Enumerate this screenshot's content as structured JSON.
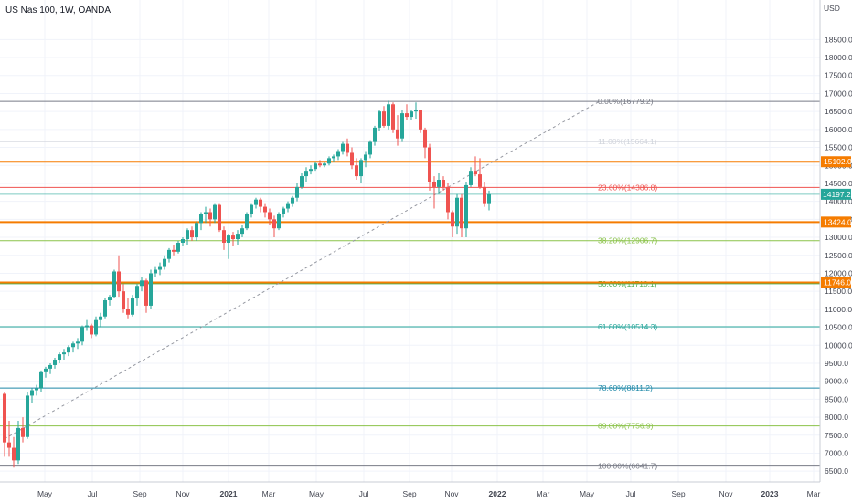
{
  "symbol": {
    "title": "US Nas 100, 1W, OANDA"
  },
  "chart_data": {
    "type": "candlestick",
    "title": "US Nas 100, 1W, OANDA",
    "currency_label": "USD",
    "ylim": [
      6200,
      19600
    ],
    "y_ticks": [
      "6500.0",
      "7000.0",
      "7500.0",
      "8000.0",
      "8500.0",
      "9000.0",
      "9500.0",
      "10000.0",
      "10500.0",
      "11000.0",
      "11500.0",
      "12000.0",
      "12500.0",
      "13000.0",
      "13500.0",
      "14000.0",
      "14500.0",
      "15000.0",
      "15500.0",
      "16000.0",
      "16500.0",
      "17000.0",
      "17500.0",
      "18000.0",
      "18500.0"
    ],
    "x_ticks": [
      "May",
      "Jul",
      "Sep",
      "Nov",
      "2021",
      "Mar",
      "May",
      "Jul",
      "Sep",
      "Nov",
      "2022",
      "Mar",
      "May",
      "Jul",
      "Sep",
      "Nov",
      "2023",
      "Mar"
    ],
    "colors": {
      "up": "#26a69a",
      "down": "#ef5350",
      "orange": "#f57c00",
      "grid": "#f0f3fa",
      "axis": "#c9ccd4",
      "current": "#26a69a",
      "trend": "#9598a1"
    },
    "current_price": {
      "label": "14197.2",
      "value": 14197.2
    },
    "horizontal_levels": [
      {
        "label": "15102.0",
        "value": 15102.0
      },
      {
        "label": "13424.0",
        "value": 13424.0
      },
      {
        "label": "11746.0",
        "value": 11746.0
      }
    ],
    "fib_levels": [
      {
        "label": "0.00%(16779.2)",
        "value": 16779.2,
        "color": "#787b86"
      },
      {
        "label": "11.00%(15664.1)",
        "value": 15664.1,
        "color": "#d1d4dc"
      },
      {
        "label": "23.60%(14386.8)",
        "value": 14386.8,
        "color": "#ef5350"
      },
      {
        "label": "38.20%(12906.7)",
        "value": 12906.7,
        "color": "#8bc34a"
      },
      {
        "label": "50.00%(11710.1)",
        "value": 11710.1,
        "color": "#4caf50"
      },
      {
        "label": "61.80%(10514.3)",
        "value": 10514.3,
        "color": "#26a69a"
      },
      {
        "label": "78.60%(8811.2)",
        "value": 8811.2,
        "color": "#1e88a8"
      },
      {
        "label": "89.00%(7756.9)",
        "value": 7756.9,
        "color": "#8bc34a"
      },
      {
        "label": "100.00%(6641.7)",
        "value": 6641.7,
        "color": "#787b86"
      }
    ],
    "trendline": {
      "from": [
        0,
        7400
      ],
      "to": [
        114,
        16770
      ]
    },
    "candles": [
      [
        8650,
        8700,
        6900,
        7300
      ],
      [
        7300,
        7900,
        6900,
        7150
      ],
      [
        7150,
        7450,
        6600,
        6800
      ],
      [
        6800,
        7900,
        6700,
        7700
      ],
      [
        7700,
        8000,
        7300,
        7450
      ],
      [
        7450,
        8700,
        7400,
        8600
      ],
      [
        8600,
        8800,
        8400,
        8750
      ],
      [
        8750,
        8900,
        8600,
        8800
      ],
      [
        8800,
        9300,
        8700,
        9250
      ],
      [
        9250,
        9400,
        9100,
        9350
      ],
      [
        9350,
        9500,
        9200,
        9450
      ],
      [
        9450,
        9650,
        9350,
        9600
      ],
      [
        9600,
        9800,
        9500,
        9750
      ],
      [
        9750,
        9900,
        9600,
        9800
      ],
      [
        9800,
        10000,
        9700,
        9950
      ],
      [
        9950,
        10100,
        9800,
        10050
      ],
      [
        10050,
        10200,
        9900,
        10100
      ],
      [
        10100,
        10550,
        10000,
        10500
      ],
      [
        10500,
        10700,
        10400,
        10550
      ],
      [
        10550,
        10600,
        10200,
        10300
      ],
      [
        10300,
        10800,
        10250,
        10700
      ],
      [
        10700,
        10900,
        10500,
        10800
      ],
      [
        10800,
        11300,
        10750,
        11250
      ],
      [
        11250,
        11400,
        11100,
        11350
      ],
      [
        11350,
        12100,
        11300,
        12050
      ],
      [
        12050,
        12500,
        11350,
        11500
      ],
      [
        11500,
        11700,
        10900,
        11000
      ],
      [
        11000,
        11300,
        10750,
        10850
      ],
      [
        10850,
        11400,
        10800,
        11300
      ],
      [
        11300,
        11700,
        11100,
        11650
      ],
      [
        11650,
        11900,
        11500,
        11800
      ],
      [
        11800,
        11850,
        10900,
        11100
      ],
      [
        11100,
        12100,
        11000,
        12000
      ],
      [
        12000,
        12200,
        11900,
        12100
      ],
      [
        12100,
        12300,
        11950,
        12200
      ],
      [
        12200,
        12500,
        12100,
        12400
      ],
      [
        12400,
        12700,
        12300,
        12650
      ],
      [
        12650,
        12800,
        12500,
        12600
      ],
      [
        12600,
        12900,
        12550,
        12850
      ],
      [
        12850,
        13000,
        12750,
        12950
      ],
      [
        12950,
        13250,
        12800,
        13200
      ],
      [
        13200,
        13300,
        12900,
        13000
      ],
      [
        13000,
        13450,
        12900,
        13400
      ],
      [
        13400,
        13700,
        13200,
        13650
      ],
      [
        13650,
        13850,
        13400,
        13700
      ],
      [
        13700,
        13800,
        13300,
        13500
      ],
      [
        13500,
        13950,
        13400,
        13900
      ],
      [
        13900,
        13950,
        13150,
        13200
      ],
      [
        13200,
        13300,
        12650,
        12850
      ],
      [
        12850,
        13100,
        12400,
        13050
      ],
      [
        13050,
        13150,
        12750,
        12950
      ],
      [
        12950,
        13200,
        12800,
        13100
      ],
      [
        13100,
        13350,
        13000,
        13250
      ],
      [
        13250,
        13700,
        13200,
        13650
      ],
      [
        13650,
        13950,
        13550,
        13900
      ],
      [
        13900,
        14100,
        13800,
        14050
      ],
      [
        14050,
        14100,
        13700,
        13850
      ],
      [
        13850,
        13950,
        13550,
        13700
      ],
      [
        13700,
        13800,
        13350,
        13500
      ],
      [
        13500,
        13600,
        13000,
        13250
      ],
      [
        13250,
        13700,
        13200,
        13650
      ],
      [
        13650,
        13850,
        13550,
        13800
      ],
      [
        13800,
        14000,
        13700,
        13950
      ],
      [
        13950,
        14150,
        13850,
        14100
      ],
      [
        14100,
        14500,
        14000,
        14400
      ],
      [
        14400,
        14800,
        14350,
        14700
      ],
      [
        14700,
        14950,
        14550,
        14850
      ],
      [
        14850,
        15000,
        14750,
        14900
      ],
      [
        14900,
        15100,
        14850,
        15050
      ],
      [
        15050,
        15150,
        14950,
        15000
      ],
      [
        15000,
        15100,
        14950,
        15050
      ],
      [
        15050,
        15250,
        15000,
        15200
      ],
      [
        15200,
        15300,
        15100,
        15250
      ],
      [
        15250,
        15450,
        15150,
        15400
      ],
      [
        15400,
        15650,
        15300,
        15600
      ],
      [
        15600,
        15750,
        15250,
        15350
      ],
      [
        15350,
        15500,
        14900,
        15000
      ],
      [
        15000,
        15200,
        14600,
        14700
      ],
      [
        14700,
        15200,
        14500,
        15150
      ],
      [
        15150,
        15400,
        14950,
        15300
      ],
      [
        15300,
        15700,
        15200,
        15650
      ],
      [
        15650,
        16100,
        15550,
        16050
      ],
      [
        16050,
        16550,
        15950,
        16500
      ],
      [
        16500,
        16650,
        16050,
        16100
      ],
      [
        16100,
        16800,
        16000,
        16700
      ],
      [
        16700,
        16750,
        15900,
        16000
      ],
      [
        16000,
        16400,
        15550,
        15750
      ],
      [
        15750,
        16550,
        15650,
        16450
      ],
      [
        16450,
        16700,
        16250,
        16350
      ],
      [
        16350,
        16550,
        16250,
        16500
      ],
      [
        16500,
        16750,
        16300,
        16550
      ],
      [
        16550,
        16550,
        15900,
        16000
      ],
      [
        16000,
        16050,
        15200,
        15500
      ],
      [
        15500,
        15600,
        14300,
        14550
      ],
      [
        14550,
        14700,
        13800,
        14400
      ],
      [
        14400,
        14800,
        14200,
        14600
      ],
      [
        14600,
        14700,
        14300,
        14400
      ],
      [
        14400,
        14500,
        13500,
        13700
      ],
      [
        13700,
        13750,
        13000,
        13300
      ],
      [
        13300,
        14200,
        13100,
        14100
      ],
      [
        14100,
        14200,
        13000,
        13250
      ],
      [
        13250,
        14550,
        13000,
        14450
      ],
      [
        14450,
        14950,
        14400,
        14850
      ],
      [
        14850,
        15250,
        14700,
        14750
      ],
      [
        14750,
        15200,
        14350,
        14400
      ],
      [
        14400,
        14550,
        13850,
        13950
      ],
      [
        13950,
        14300,
        13750,
        14197
      ]
    ]
  }
}
